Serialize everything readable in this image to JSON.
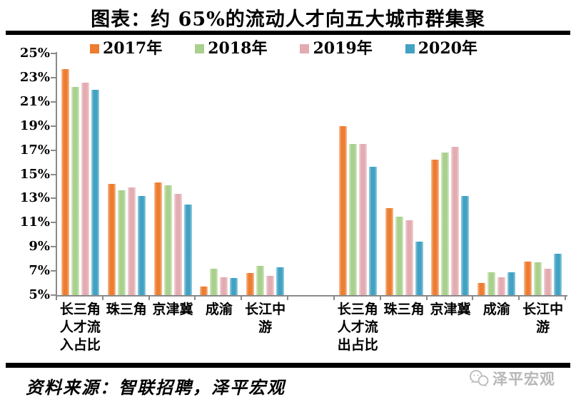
{
  "title": "图表：约 65%的流动人才向五大城市群集聚",
  "source_note": "资料来源：智联招聘，泽平宏观",
  "watermark": {
    "text": "泽平宏观",
    "icon": "chat-bubbles-icon",
    "color": "#b7b7b7"
  },
  "chart_data": {
    "type": "bar",
    "title": "图表：约 65%的流动人才向五大城市群集聚",
    "xlabel": "",
    "ylabel": "",
    "ylim": [
      5,
      25
    ],
    "ytick_step": 2,
    "ytick_labels": [
      "5%",
      "7%",
      "9%",
      "11%",
      "13%",
      "15%",
      "17%",
      "19%",
      "21%",
      "23%",
      "25%"
    ],
    "grid": false,
    "legend_position": "top",
    "axis_color": "#8a8a8a",
    "n_slots": 11,
    "slots": [
      0,
      1,
      2,
      3,
      4,
      6,
      7,
      8,
      9,
      10
    ],
    "categories": [
      "长三角\n人才流\n入占比",
      "珠三角",
      "京津冀",
      "成渝",
      "长江中\n游",
      "长三角\n人才流\n出占比",
      "珠三角",
      "京津冀",
      "成渝",
      "长江中\n游"
    ],
    "group_labels": [
      "人才流入占比",
      "人才流出占比"
    ],
    "series": [
      {
        "name": "2017年",
        "color": "#ED7D31",
        "color_light": "#F7C29B",
        "values": [
          23.7,
          14.2,
          14.3,
          5.7,
          6.8,
          19.0,
          12.2,
          16.2,
          6.0,
          7.8
        ]
      },
      {
        "name": "2018年",
        "color": "#A9D08E",
        "color_light": "#D6EBC3",
        "values": [
          22.2,
          13.7,
          14.1,
          7.2,
          7.4,
          17.5,
          11.5,
          16.8,
          6.9,
          7.7
        ]
      },
      {
        "name": "2019年",
        "color": "#E2ACB2",
        "color_light": "#F2D6D9",
        "values": [
          22.6,
          13.9,
          13.4,
          6.5,
          6.6,
          17.5,
          11.2,
          17.3,
          6.5,
          7.2
        ]
      },
      {
        "name": "2020年",
        "color": "#41A2C3",
        "color_light": "#9ED0E2",
        "values": [
          22.0,
          13.2,
          12.5,
          6.4,
          7.3,
          15.6,
          9.4,
          13.2,
          6.9,
          8.4
        ]
      }
    ]
  }
}
